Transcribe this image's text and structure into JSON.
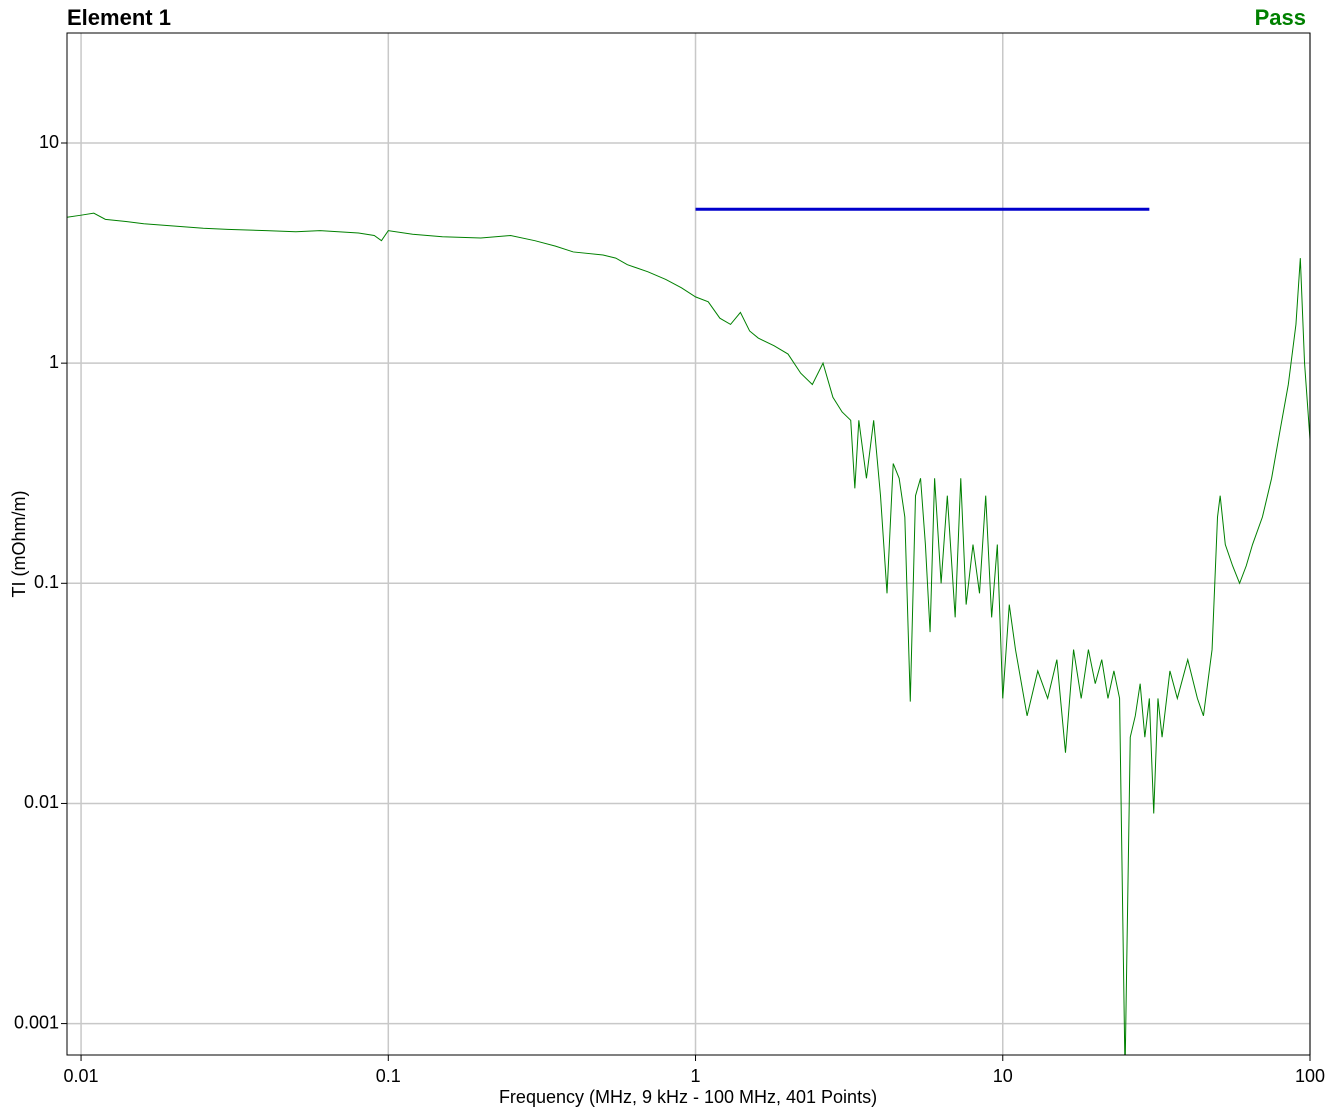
{
  "chart_data": {
    "type": "line",
    "title": "Element 1",
    "status": "Pass",
    "x_label": "Frequency (MHz, 9 kHz - 100 MHz, 401 Points)",
    "y_label": "TI (mOhm/m)",
    "log_x": true,
    "log_y": true,
    "grid": true,
    "xlim": [
      0.009,
      100
    ],
    "ylim": [
      0.00072,
      31.6
    ],
    "xticks": [
      0.01,
      0.1,
      1,
      10,
      100
    ],
    "yticks": [
      0.001,
      0.01,
      0.1,
      1,
      10
    ],
    "series": [
      {
        "color": "#008000",
        "x": [
          0.009,
          0.01,
          0.011,
          0.012,
          0.014,
          0.016,
          0.02,
          0.025,
          0.03,
          0.04,
          0.05,
          0.06,
          0.08,
          0.09,
          0.095,
          0.1,
          0.12,
          0.15,
          0.2,
          0.25,
          0.3,
          0.35,
          0.4,
          0.5,
          0.55,
          0.6,
          0.7,
          0.8,
          0.9,
          1.0,
          1.1,
          1.2,
          1.3,
          1.4,
          1.5,
          1.6,
          1.8,
          2.0,
          2.2,
          2.4,
          2.6,
          2.8,
          3.0,
          3.2,
          3.3,
          3.4,
          3.6,
          3.8,
          4.0,
          4.2,
          4.4,
          4.6,
          4.8,
          5.0,
          5.2,
          5.4,
          5.6,
          5.8,
          6.0,
          6.3,
          6.6,
          7.0,
          7.3,
          7.6,
          8.0,
          8.4,
          8.8,
          9.2,
          9.6,
          10,
          10.5,
          11,
          12,
          13,
          14,
          15,
          16,
          17,
          18,
          19,
          20,
          21,
          22,
          23,
          24,
          25,
          26,
          27,
          28,
          29,
          30,
          31,
          32,
          33,
          35,
          37,
          40,
          43,
          45,
          48,
          50,
          51,
          53,
          56,
          59,
          62,
          65,
          70,
          75,
          80,
          85,
          90,
          93,
          96,
          100
        ],
        "values": [
          4.6,
          4.7,
          4.8,
          4.5,
          4.4,
          4.3,
          4.2,
          4.1,
          4.05,
          4.0,
          3.95,
          4.0,
          3.9,
          3.8,
          3.6,
          4.0,
          3.85,
          3.75,
          3.7,
          3.8,
          3.6,
          3.4,
          3.2,
          3.1,
          3.0,
          2.8,
          2.6,
          2.4,
          2.2,
          2.0,
          1.9,
          1.6,
          1.5,
          1.7,
          1.4,
          1.3,
          1.2,
          1.1,
          0.9,
          0.8,
          1.0,
          0.7,
          0.6,
          0.55,
          0.27,
          0.55,
          0.3,
          0.55,
          0.25,
          0.09,
          0.35,
          0.3,
          0.2,
          0.029,
          0.25,
          0.3,
          0.15,
          0.06,
          0.3,
          0.1,
          0.25,
          0.07,
          0.3,
          0.08,
          0.15,
          0.09,
          0.25,
          0.07,
          0.15,
          0.03,
          0.08,
          0.05,
          0.025,
          0.04,
          0.03,
          0.045,
          0.017,
          0.05,
          0.03,
          0.05,
          0.035,
          0.045,
          0.03,
          0.04,
          0.03,
          0.0006,
          0.02,
          0.025,
          0.035,
          0.02,
          0.03,
          0.009,
          0.03,
          0.02,
          0.04,
          0.03,
          0.045,
          0.03,
          0.025,
          0.05,
          0.2,
          0.25,
          0.15,
          0.12,
          0.1,
          0.12,
          0.15,
          0.2,
          0.3,
          0.5,
          0.8,
          1.5,
          3.0,
          1.0,
          0.45
        ]
      },
      {
        "color": "#0000cc",
        "x": [
          1,
          30
        ],
        "values": [
          5,
          5
        ]
      }
    ]
  }
}
